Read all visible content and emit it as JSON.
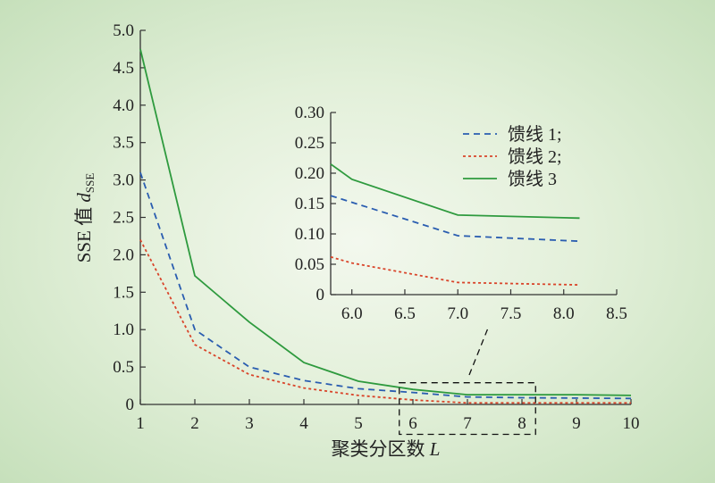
{
  "chart_data": [
    {
      "type": "line",
      "xlabel": "聚类分区数",
      "xlabel_italic": "L",
      "ylabel": "SSE 值",
      "ylabel_italic": "d",
      "ylabel_sub": "SSE",
      "xlim": [
        1,
        10
      ],
      "ylim": [
        0,
        5.0
      ],
      "xticks": [
        "1",
        "2",
        "3",
        "4",
        "5",
        "6",
        "7",
        "8",
        "9",
        "10"
      ],
      "yticks": [
        "0",
        "0.5",
        "1.0",
        "1.5",
        "2.0",
        "2.5",
        "3.0",
        "3.5",
        "4.0",
        "4.5",
        "5.0"
      ],
      "grid": false,
      "series": [
        {
          "name": "馈线 1;",
          "color": "#2a5db0",
          "style": "dashed",
          "x": [
            1,
            2,
            3,
            4,
            5,
            6,
            7,
            8,
            9,
            10
          ],
          "y": [
            3.1,
            1.0,
            0.5,
            0.32,
            0.21,
            0.16,
            0.1,
            0.09,
            0.085,
            0.08
          ]
        },
        {
          "name": "馈线 2;",
          "color": "#d9442a",
          "style": "dotted",
          "x": [
            1,
            2,
            3,
            4,
            5,
            6,
            7,
            8,
            9,
            10
          ],
          "y": [
            2.2,
            0.8,
            0.4,
            0.22,
            0.12,
            0.06,
            0.02,
            0.02,
            0.02,
            0.02
          ]
        },
        {
          "name": "馈线 3",
          "color": "#2e9a3e",
          "style": "solid",
          "x": [
            1,
            2,
            3,
            4,
            5,
            6,
            7,
            8,
            9,
            10
          ],
          "y": [
            4.75,
            1.72,
            1.1,
            0.56,
            0.31,
            0.2,
            0.13,
            0.13,
            0.13,
            0.12
          ]
        }
      ]
    },
    {
      "type": "line",
      "role": "inset",
      "xlim": [
        5.8,
        8.5
      ],
      "ylim": [
        0,
        0.3
      ],
      "xticks": [
        "6.0",
        "6.5",
        "7.0",
        "7.5",
        "8.0",
        "8.5"
      ],
      "yticks": [
        "0",
        "0.05",
        "0.10",
        "0.15",
        "0.20",
        "0.25",
        "0.30"
      ],
      "legend": "top-right",
      "series": [
        {
          "name": "馈线 1;",
          "color": "#2a5db0",
          "style": "dashed",
          "x": [
            5.8,
            6.0,
            7.0,
            8.15
          ],
          "y": [
            0.163,
            0.152,
            0.097,
            0.088
          ]
        },
        {
          "name": "馈线 2;",
          "color": "#d9442a",
          "style": "dotted",
          "x": [
            5.8,
            6.0,
            7.0,
            8.15
          ],
          "y": [
            0.062,
            0.052,
            0.02,
            0.016
          ]
        },
        {
          "name": "馈线 3",
          "color": "#2e9a3e",
          "style": "solid",
          "x": [
            5.8,
            6.0,
            7.0,
            8.15
          ],
          "y": [
            0.215,
            0.19,
            0.131,
            0.126
          ]
        }
      ]
    }
  ]
}
